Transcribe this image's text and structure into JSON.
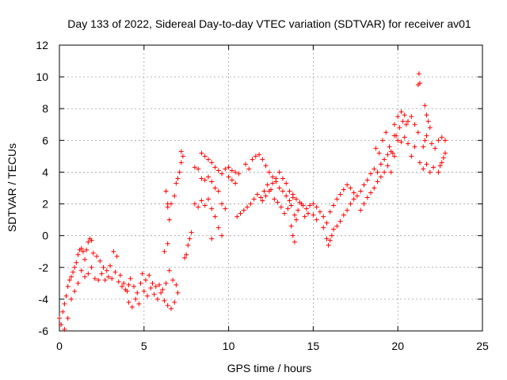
{
  "chart_data": {
    "type": "scatter",
    "title": "Day 133 of 2022, Sidereal Day-to-day VTEC variation (SDTVAR) for receiver av01",
    "xlabel": "GPS time / hours",
    "ylabel": "SDTVAR / TECUs",
    "xlim": [
      0,
      25
    ],
    "ylim": [
      -6,
      12
    ],
    "x_ticks": [
      0,
      5,
      10,
      15,
      20,
      25
    ],
    "y_ticks": [
      -6,
      -4,
      -2,
      0,
      2,
      4,
      6,
      8,
      10,
      12
    ],
    "grid": true,
    "marker": "+",
    "color": "#ff0000",
    "series": [
      {
        "name": "av01",
        "points": [
          [
            0.0,
            -5.2
          ],
          [
            0.1,
            -5.6
          ],
          [
            0.2,
            -4.8
          ],
          [
            0.3,
            -4.3
          ],
          [
            0.4,
            -3.8
          ],
          [
            0.5,
            -3.2
          ],
          [
            0.6,
            -2.8
          ],
          [
            0.7,
            -2.6
          ],
          [
            0.8,
            -2.3
          ],
          [
            0.9,
            -2.0
          ],
          [
            1.0,
            -1.7
          ],
          [
            1.1,
            -1.2
          ],
          [
            1.2,
            -0.9
          ],
          [
            1.3,
            -0.8
          ],
          [
            1.4,
            -1.0
          ],
          [
            1.5,
            -1.5
          ],
          [
            1.6,
            -0.9
          ],
          [
            1.7,
            -0.4
          ],
          [
            1.8,
            -0.2
          ],
          [
            1.9,
            -0.3
          ],
          [
            0.3,
            -5.9
          ],
          [
            0.5,
            -5.2
          ],
          [
            0.7,
            -4.0
          ],
          [
            0.9,
            -3.5
          ],
          [
            1.1,
            -3.0
          ],
          [
            1.3,
            -2.2
          ],
          [
            1.5,
            -2.6
          ],
          [
            1.7,
            -2.4
          ],
          [
            1.9,
            -2.0
          ],
          [
            2.1,
            -2.7
          ],
          [
            2.3,
            -2.8
          ],
          [
            2.5,
            -2.4
          ],
          [
            2.7,
            -2.8
          ],
          [
            2.9,
            -2.6
          ],
          [
            3.1,
            -2.7
          ],
          [
            3.3,
            -2.3
          ],
          [
            3.5,
            -2.9
          ],
          [
            3.7,
            -3.2
          ],
          [
            3.9,
            -3.4
          ],
          [
            4.1,
            -3.1
          ],
          [
            2.0,
            -1.1
          ],
          [
            2.2,
            -1.3
          ],
          [
            2.4,
            -1.6
          ],
          [
            2.6,
            -2.0
          ],
          [
            2.8,
            -2.2
          ],
          [
            3.0,
            -1.9
          ],
          [
            3.2,
            -1.0
          ],
          [
            3.4,
            -1.3
          ],
          [
            3.6,
            -2.5
          ],
          [
            3.8,
            -3.0
          ],
          [
            4.0,
            -3.5
          ],
          [
            4.2,
            -2.7
          ],
          [
            4.4,
            -3.2
          ],
          [
            4.6,
            -3.6
          ],
          [
            4.8,
            -3.0
          ],
          [
            5.0,
            -3.5
          ],
          [
            5.2,
            -3.8
          ],
          [
            5.4,
            -3.3
          ],
          [
            5.6,
            -3.7
          ],
          [
            5.8,
            -4.0
          ],
          [
            6.0,
            -3.6
          ],
          [
            6.2,
            -4.1
          ],
          [
            6.4,
            -4.4
          ],
          [
            6.6,
            -4.6
          ],
          [
            6.8,
            -4.2
          ],
          [
            7.0,
            -3.6
          ],
          [
            4.1,
            -4.2
          ],
          [
            4.3,
            -4.5
          ],
          [
            4.5,
            -4.0
          ],
          [
            4.7,
            -4.3
          ],
          [
            4.9,
            -2.4
          ],
          [
            5.1,
            -2.8
          ],
          [
            5.3,
            -2.5
          ],
          [
            5.5,
            -3.0
          ],
          [
            5.7,
            -3.2
          ],
          [
            5.9,
            -3.1
          ],
          [
            6.1,
            -3.4
          ],
          [
            6.3,
            -3.0
          ],
          [
            6.5,
            -2.2
          ],
          [
            6.7,
            -2.8
          ],
          [
            6.9,
            -3.1
          ],
          [
            6.2,
            -1.0
          ],
          [
            6.4,
            -0.5
          ],
          [
            6.5,
            1.0
          ],
          [
            6.6,
            2.0
          ],
          [
            6.8,
            2.5
          ],
          [
            6.9,
            3.3
          ],
          [
            7.0,
            3.6
          ],
          [
            7.1,
            4.0
          ],
          [
            7.2,
            4.6
          ],
          [
            7.2,
            5.3
          ],
          [
            7.3,
            5.0
          ],
          [
            6.4,
            1.8
          ],
          [
            6.3,
            2.8
          ],
          [
            6.4,
            2.0
          ],
          [
            7.4,
            -1.4
          ],
          [
            7.5,
            -1.2
          ],
          [
            7.6,
            -0.6
          ],
          [
            7.7,
            -0.2
          ],
          [
            7.8,
            0.2
          ],
          [
            8.0,
            2.0
          ],
          [
            8.2,
            1.8
          ],
          [
            8.4,
            2.2
          ],
          [
            8.6,
            1.9
          ],
          [
            8.8,
            2.3
          ],
          [
            9.0,
            1.7
          ],
          [
            9.2,
            1.2
          ],
          [
            9.4,
            0.5
          ],
          [
            9.6,
            0.0
          ],
          [
            9.0,
            -0.2
          ],
          [
            8.4,
            5.2
          ],
          [
            8.6,
            5.0
          ],
          [
            8.8,
            4.8
          ],
          [
            9.0,
            4.6
          ],
          [
            9.2,
            4.3
          ],
          [
            9.4,
            4.1
          ],
          [
            9.6,
            3.9
          ],
          [
            9.8,
            4.2
          ],
          [
            10.0,
            4.3
          ],
          [
            10.2,
            4.1
          ],
          [
            10.4,
            4.0
          ],
          [
            10.6,
            3.9
          ],
          [
            8.0,
            4.3
          ],
          [
            8.2,
            4.2
          ],
          [
            8.4,
            3.6
          ],
          [
            8.6,
            3.5
          ],
          [
            8.8,
            3.7
          ],
          [
            9.0,
            3.4
          ],
          [
            9.2,
            3.0
          ],
          [
            9.4,
            2.8
          ],
          [
            9.6,
            2.0
          ],
          [
            9.8,
            1.7
          ],
          [
            10.0,
            3.7
          ],
          [
            10.2,
            3.5
          ],
          [
            10.4,
            3.3
          ],
          [
            11.0,
            4.5
          ],
          [
            11.2,
            4.2
          ],
          [
            11.4,
            4.8
          ],
          [
            11.6,
            5.0
          ],
          [
            11.8,
            5.1
          ],
          [
            12.0,
            4.8
          ],
          [
            12.2,
            4.4
          ],
          [
            12.4,
            4.0
          ],
          [
            12.6,
            3.7
          ],
          [
            12.8,
            3.4
          ],
          [
            13.0,
            3.0
          ],
          [
            13.2,
            2.8
          ],
          [
            13.4,
            2.5
          ],
          [
            13.6,
            2.2
          ],
          [
            13.8,
            2.4
          ],
          [
            10.5,
            1.2
          ],
          [
            10.7,
            1.4
          ],
          [
            10.9,
            1.6
          ],
          [
            11.1,
            1.8
          ],
          [
            11.3,
            2.0
          ],
          [
            11.5,
            2.3
          ],
          [
            11.7,
            2.6
          ],
          [
            11.9,
            2.4
          ],
          [
            12.1,
            2.8
          ],
          [
            12.3,
            3.2
          ],
          [
            12.5,
            2.9
          ],
          [
            12.7,
            2.3
          ],
          [
            12.9,
            2.1
          ],
          [
            13.1,
            1.8
          ],
          [
            13.3,
            1.4
          ],
          [
            13.5,
            1.7
          ],
          [
            13.7,
            1.9
          ],
          [
            13.9,
            1.3
          ],
          [
            14.1,
            1.6
          ],
          [
            14.3,
            2.0
          ],
          [
            12.0,
            2.2
          ],
          [
            12.2,
            2.5
          ],
          [
            12.4,
            2.8
          ],
          [
            12.6,
            3.3
          ],
          [
            12.8,
            3.6
          ],
          [
            13.0,
            4.0
          ],
          [
            13.2,
            3.6
          ],
          [
            13.4,
            3.3
          ],
          [
            13.6,
            2.8
          ],
          [
            13.8,
            2.6
          ],
          [
            14.0,
            2.3
          ],
          [
            14.2,
            2.1
          ],
          [
            14.4,
            1.9
          ],
          [
            14.6,
            1.7
          ],
          [
            14.8,
            1.9
          ],
          [
            15.0,
            2.0
          ],
          [
            15.2,
            1.8
          ],
          [
            15.4,
            1.5
          ],
          [
            15.6,
            1.2
          ],
          [
            15.8,
            0.8
          ],
          [
            13.7,
            0.6
          ],
          [
            13.8,
            0.0
          ],
          [
            13.9,
            -0.4
          ],
          [
            14.0,
            1.0
          ],
          [
            14.5,
            1.2
          ],
          [
            14.7,
            1.4
          ],
          [
            15.0,
            1.3
          ],
          [
            15.2,
            1.0
          ],
          [
            15.6,
            0.5
          ],
          [
            15.8,
            -0.2
          ],
          [
            15.9,
            -0.6
          ],
          [
            16.0,
            -0.3
          ],
          [
            16.1,
            0.0
          ],
          [
            16.2,
            0.4
          ],
          [
            16.4,
            0.6
          ],
          [
            16.6,
            0.9
          ],
          [
            16.8,
            1.3
          ],
          [
            17.0,
            1.6
          ],
          [
            17.2,
            2.0
          ],
          [
            17.4,
            2.3
          ],
          [
            16.0,
            1.5
          ],
          [
            16.2,
            1.9
          ],
          [
            16.4,
            2.3
          ],
          [
            16.6,
            2.6
          ],
          [
            16.8,
            2.9
          ],
          [
            17.0,
            3.2
          ],
          [
            17.2,
            3.0
          ],
          [
            17.4,
            2.7
          ],
          [
            17.6,
            2.5
          ],
          [
            17.8,
            2.8
          ],
          [
            18.0,
            3.2
          ],
          [
            18.2,
            3.5
          ],
          [
            18.4,
            3.9
          ],
          [
            18.6,
            4.2
          ],
          [
            18.8,
            4.0
          ],
          [
            19.0,
            4.5
          ],
          [
            19.2,
            4.8
          ],
          [
            19.4,
            5.1
          ],
          [
            19.6,
            5.3
          ],
          [
            19.8,
            5.0
          ],
          [
            17.8,
            1.6
          ],
          [
            18.0,
            2.0
          ],
          [
            18.2,
            2.4
          ],
          [
            18.4,
            2.7
          ],
          [
            18.6,
            3.0
          ],
          [
            18.8,
            3.4
          ],
          [
            19.0,
            3.7
          ],
          [
            19.2,
            4.0
          ],
          [
            19.4,
            4.4
          ],
          [
            19.6,
            4.0
          ],
          [
            18.7,
            5.5
          ],
          [
            18.9,
            5.2
          ],
          [
            19.1,
            6.0
          ],
          [
            19.3,
            6.5
          ],
          [
            19.5,
            5.6
          ],
          [
            19.7,
            5.2
          ],
          [
            19.9,
            6.3
          ],
          [
            20.1,
            6.8
          ],
          [
            20.3,
            7.2
          ],
          [
            20.5,
            7.0
          ],
          [
            19.8,
            7.0
          ],
          [
            20.0,
            7.5
          ],
          [
            20.2,
            7.8
          ],
          [
            20.4,
            7.6
          ],
          [
            20.6,
            7.2
          ],
          [
            20.8,
            7.5
          ],
          [
            21.0,
            7.0
          ],
          [
            21.2,
            6.5
          ],
          [
            21.0,
            5.6
          ],
          [
            20.8,
            5.0
          ],
          [
            20.6,
            5.8
          ],
          [
            20.4,
            6.2
          ],
          [
            20.2,
            5.9
          ],
          [
            20.0,
            6.0
          ],
          [
            19.8,
            6.3
          ],
          [
            21.3,
            4.6
          ],
          [
            21.5,
            4.2
          ],
          [
            21.7,
            4.5
          ],
          [
            21.9,
            4.0
          ],
          [
            22.1,
            4.3
          ],
          [
            21.6,
            8.2
          ],
          [
            21.7,
            7.6
          ],
          [
            21.8,
            7.2
          ],
          [
            21.9,
            6.8
          ],
          [
            21.7,
            6.3
          ],
          [
            21.6,
            6.0
          ],
          [
            21.5,
            5.6
          ],
          [
            22.0,
            5.8
          ],
          [
            22.2,
            5.5
          ],
          [
            22.4,
            6.0
          ],
          [
            22.6,
            6.2
          ],
          [
            22.8,
            6.0
          ],
          [
            22.4,
            4.0
          ],
          [
            22.5,
            4.4
          ],
          [
            22.6,
            4.6
          ],
          [
            22.7,
            4.9
          ],
          [
            22.8,
            5.2
          ],
          [
            21.25,
            10.2
          ],
          [
            21.3,
            9.6
          ],
          [
            21.2,
            9.5
          ]
        ]
      }
    ]
  }
}
